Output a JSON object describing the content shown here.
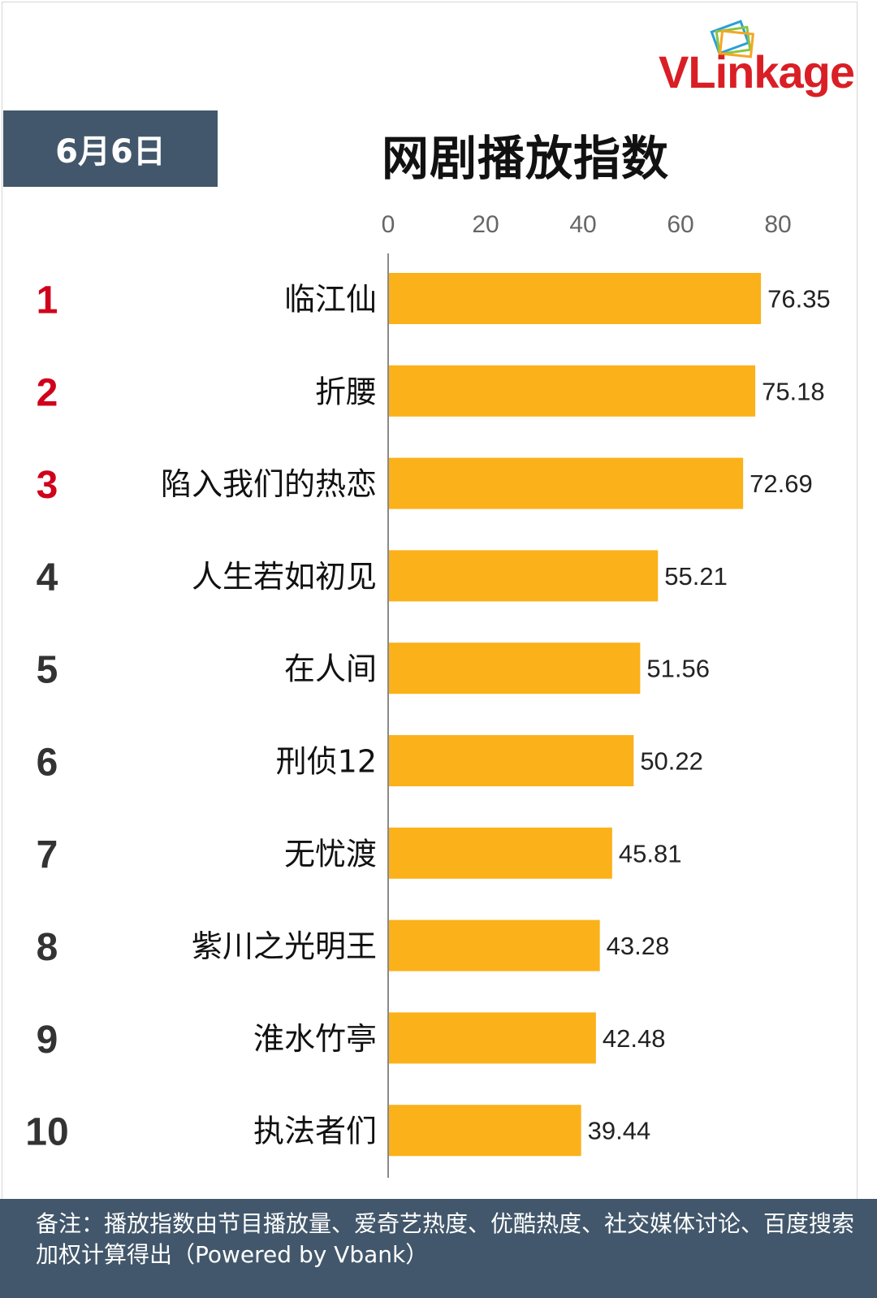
{
  "header": {
    "brand": "VLinkage",
    "date": "6月6日",
    "title": "网剧播放指数"
  },
  "colors": {
    "bar": "#fbb11a",
    "accent_red": "#d0021b",
    "header_bg": "#42576b",
    "rank_dark": "#333333"
  },
  "chart_data": {
    "type": "bar",
    "orientation": "horizontal",
    "title": "网剧播放指数",
    "ranks": [
      "1",
      "2",
      "3",
      "4",
      "5",
      "6",
      "7",
      "8",
      "9",
      "10"
    ],
    "categories": [
      "临江仙",
      "折腰",
      "陷入我们的热恋",
      "人生若如初见",
      "在人间",
      "刑侦12",
      "无忧渡",
      "紫川之光明王",
      "淮水竹亭",
      "执法者们"
    ],
    "values": [
      76.35,
      75.18,
      72.69,
      55.21,
      51.56,
      50.22,
      45.81,
      43.28,
      42.48,
      39.44
    ],
    "value_labels": [
      "76.35",
      "75.18",
      "72.69",
      "55.21",
      "51.56",
      "50.22",
      "45.81",
      "43.28",
      "42.48",
      "39.44"
    ],
    "xticks": [
      "0",
      "20",
      "40",
      "60",
      "80"
    ],
    "xlim": [
      0,
      80
    ],
    "axis_position": "top",
    "grid": false,
    "legend": "none"
  },
  "footer": {
    "note": "备注：播放指数由节目播放量、爱奇艺热度、优酷热度、社交媒体讨论、百度搜索加权计算得出（Powered by Vbank）"
  }
}
